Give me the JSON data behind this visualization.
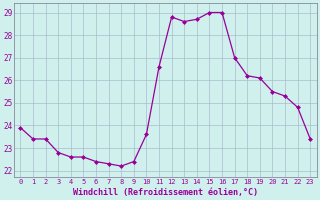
{
  "x": [
    0,
    1,
    2,
    3,
    4,
    5,
    6,
    7,
    8,
    9,
    10,
    11,
    12,
    13,
    14,
    15,
    16,
    17,
    18,
    19,
    20,
    21,
    22,
    23
  ],
  "y": [
    23.9,
    23.4,
    23.4,
    22.8,
    22.6,
    22.6,
    22.4,
    22.3,
    22.2,
    22.4,
    23.6,
    26.6,
    28.8,
    28.6,
    28.7,
    29.0,
    29.0,
    27.0,
    26.2,
    26.1,
    25.5,
    25.3,
    24.8,
    23.4
  ],
  "line_color": "#990099",
  "marker": "D",
  "marker_size": 2.0,
  "bg_color": "#cff0ec",
  "grid_color": "#aabbcc",
  "xlabel": "Windchill (Refroidissement éolien,°C)",
  "xlabel_color": "#990099",
  "tick_color": "#990099",
  "yticks": [
    22,
    23,
    24,
    25,
    26,
    27,
    28,
    29
  ],
  "xtick_labels": [
    "0",
    "1",
    "2",
    "3",
    "4",
    "5",
    "6",
    "7",
    "8",
    "9",
    "10",
    "11",
    "12",
    "13",
    "14",
    "15",
    "16",
    "17",
    "18",
    "19",
    "20",
    "21",
    "22",
    "23"
  ],
  "ylim": [
    21.7,
    29.4
  ],
  "xlim": [
    -0.5,
    23.5
  ]
}
